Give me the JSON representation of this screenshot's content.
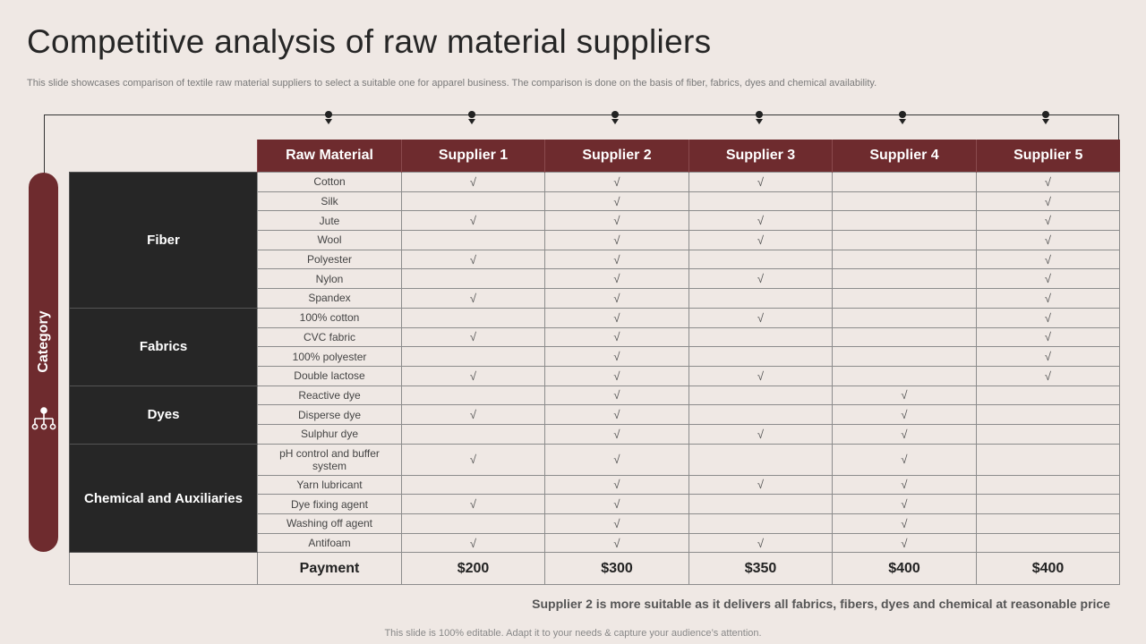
{
  "title": "Competitive analysis of raw material suppliers",
  "subtitle": "This slide showcases comparison of textile raw material suppliers to select a suitable one for apparel business. The comparison is done on the basis of fiber, fabrics, dyes and chemical availability.",
  "category_label": "Category",
  "headers": [
    "Raw Material",
    "Supplier 1",
    "Supplier 2",
    "Supplier 3",
    "Supplier 4",
    "Supplier 5"
  ],
  "check_symbol": "√",
  "groups": [
    {
      "name": "Fiber",
      "rows": [
        {
          "material": "Cotton",
          "checks": [
            true,
            true,
            true,
            false,
            true
          ]
        },
        {
          "material": "Silk",
          "checks": [
            false,
            true,
            false,
            false,
            true
          ]
        },
        {
          "material": "Jute",
          "checks": [
            true,
            true,
            true,
            false,
            true
          ]
        },
        {
          "material": "Wool",
          "checks": [
            false,
            true,
            true,
            false,
            true
          ]
        },
        {
          "material": "Polyester",
          "checks": [
            true,
            true,
            false,
            false,
            true
          ]
        },
        {
          "material": "Nylon",
          "checks": [
            false,
            true,
            true,
            false,
            true
          ]
        },
        {
          "material": "Spandex",
          "checks": [
            true,
            true,
            false,
            false,
            true
          ]
        }
      ]
    },
    {
      "name": "Fabrics",
      "rows": [
        {
          "material": "100% cotton",
          "checks": [
            false,
            true,
            true,
            false,
            true
          ]
        },
        {
          "material": "CVC fabric",
          "checks": [
            true,
            true,
            false,
            false,
            true
          ]
        },
        {
          "material": "100% polyester",
          "checks": [
            false,
            true,
            false,
            false,
            true
          ]
        },
        {
          "material": "Double lactose",
          "checks": [
            true,
            true,
            true,
            false,
            true
          ]
        }
      ]
    },
    {
      "name": "Dyes",
      "rows": [
        {
          "material": "Reactive dye",
          "checks": [
            false,
            true,
            false,
            true,
            false
          ]
        },
        {
          "material": "Disperse dye",
          "checks": [
            true,
            true,
            false,
            true,
            false
          ]
        },
        {
          "material": "Sulphur dye",
          "checks": [
            false,
            true,
            true,
            true,
            false
          ]
        }
      ]
    },
    {
      "name": "Chemical and Auxiliaries",
      "rows": [
        {
          "material": "pH control and buffer system",
          "checks": [
            true,
            true,
            false,
            true,
            false
          ]
        },
        {
          "material": "Yarn lubricant",
          "checks": [
            false,
            true,
            true,
            true,
            false
          ]
        },
        {
          "material": "Dye fixing agent",
          "checks": [
            true,
            true,
            false,
            true,
            false
          ]
        },
        {
          "material": "Washing off agent",
          "checks": [
            false,
            true,
            false,
            true,
            false
          ]
        },
        {
          "material": "Antifoam",
          "checks": [
            true,
            true,
            true,
            true,
            false
          ]
        }
      ]
    }
  ],
  "payment": {
    "label": "Payment",
    "prices": [
      "$200",
      "$300",
      "$350",
      "$400",
      "$400"
    ]
  },
  "conclusion": "Supplier 2 is more suitable as it delivers all fabrics, fibers, dyes and chemical at reasonable price",
  "footer": "This slide is 100% editable. Adapt it to your needs & capture your audience’s attention.",
  "colors": {
    "accent": "#6e2b2e",
    "category_bg": "#262626",
    "background": "#efe8e4"
  },
  "icons": [
    "hierarchy-icon"
  ]
}
